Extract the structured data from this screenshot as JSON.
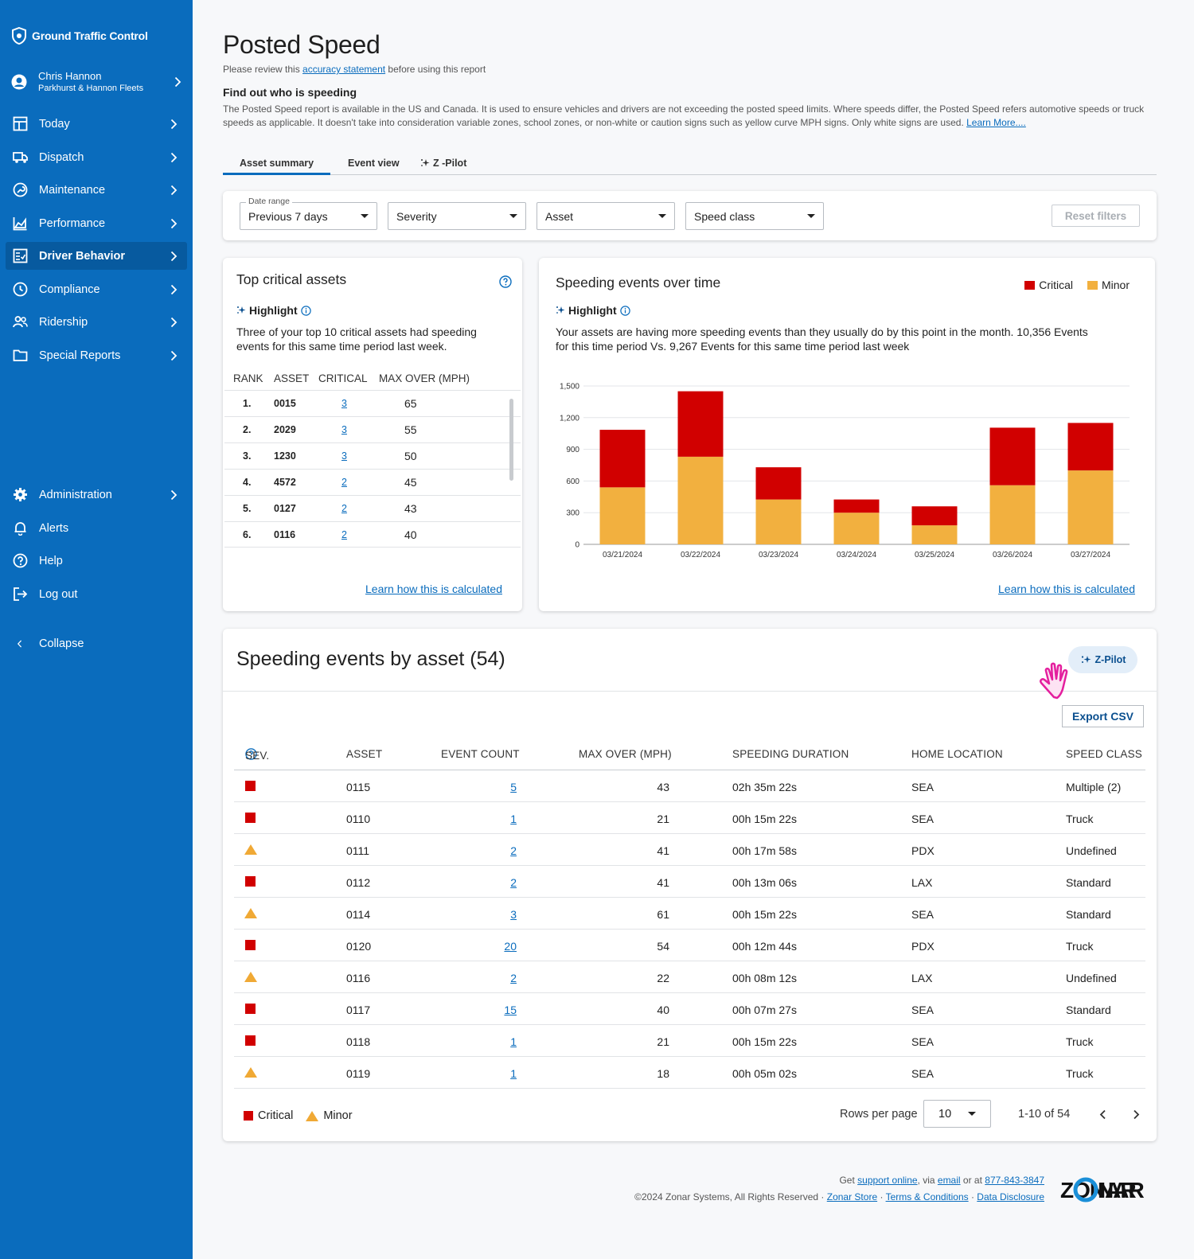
{
  "sidebar": {
    "brand": "Ground Traffic Control",
    "user": {
      "name": "Chris Hannon",
      "org": "Parkhurst & Hannon Fleets"
    },
    "items": [
      {
        "label": "Today",
        "icon": "grid-icon"
      },
      {
        "label": "Dispatch",
        "icon": "truck-icon"
      },
      {
        "label": "Maintenance",
        "icon": "wrench-icon"
      },
      {
        "label": "Performance",
        "icon": "chart-icon"
      },
      {
        "label": "Driver Behavior",
        "icon": "clipboard-check-icon"
      },
      {
        "label": "Compliance",
        "icon": "clock-icon"
      },
      {
        "label": "Ridership",
        "icon": "users-icon"
      },
      {
        "label": "Special Reports",
        "icon": "folder-icon"
      }
    ],
    "bottom_items": [
      {
        "label": "Administration",
        "icon": "gear-icon"
      },
      {
        "label": "Alerts",
        "icon": "bell-icon"
      },
      {
        "label": "Help",
        "icon": "help-icon"
      },
      {
        "label": "Log out",
        "icon": "logout-icon"
      }
    ],
    "collapse": "Collapse"
  },
  "page": {
    "title": "Posted Speed",
    "review_prefix": "Please review this ",
    "review_link": "accuracy statement",
    "review_suffix": " before using this report",
    "find_heading": "Find out who is speeding",
    "find_text": "The Posted Speed report is available in the US and Canada. It is used to ensure vehicles and drivers are not exceeding the posted speed limits. Where speeds differ, the Posted Speed refers automotive speeds or truck speeds as applicable. It doesn't take into consideration variable zones, school zones, or non-white or caution signs such as yellow curve MPH signs. Only white signs are used. ",
    "learn_more": "Learn More...."
  },
  "tabs": [
    "Asset summary",
    "Event view",
    "Z -Pilot"
  ],
  "filters": {
    "date_label": "Date range",
    "date_value": "Previous 7 days",
    "severity": "Severity",
    "asset": "Asset",
    "speed_class": "Speed class",
    "reset": "Reset filters"
  },
  "top_critical": {
    "title": "Top critical assets",
    "highlight": "Highlight",
    "highlight_text": "Three of your top 10 critical assets had speeding events for this same time period last week.",
    "headers": [
      "RANK",
      "ASSET",
      "CRITICAL",
      "MAX OVER (MPH)"
    ],
    "rows": [
      {
        "rank": "1.",
        "asset": "0015",
        "critical": "3",
        "max": "65"
      },
      {
        "rank": "2.",
        "asset": "2029",
        "critical": "3",
        "max": "55"
      },
      {
        "rank": "3.",
        "asset": "1230",
        "critical": "3",
        "max": "50"
      },
      {
        "rank": "4.",
        "asset": "4572",
        "critical": "2",
        "max": "45"
      },
      {
        "rank": "5.",
        "asset": "0127",
        "critical": "2",
        "max": "43"
      },
      {
        "rank": "6.",
        "asset": "0116",
        "critical": "2",
        "max": "40"
      }
    ],
    "learn": "Learn how this is calculated"
  },
  "speeding_over_time": {
    "title": "Speeding events over time",
    "highlight": "Highlight",
    "highlight_text": "Your assets are having more speeding events than they usually do by this point in the month. 10,356 Events for this time period Vs. 9,267 Events for this same time period last week",
    "learn": "Learn how this is calculated"
  },
  "chart_data": {
    "type": "bar",
    "stacked": true,
    "categories": [
      "03/21/2024",
      "03/22/2024",
      "03/23/2024",
      "03/24/2024",
      "03/25/2024",
      "03/26/2024",
      "03/27/2024"
    ],
    "series": [
      {
        "name": "Minor",
        "color": "#f2b03f",
        "values": [
          540,
          830,
          425,
          300,
          180,
          560,
          700
        ]
      },
      {
        "name": "Critical",
        "color": "#d10000",
        "values": [
          545,
          620,
          305,
          125,
          180,
          545,
          450
        ]
      }
    ],
    "yticks": [
      "0",
      "300",
      "600",
      "900",
      "1,200",
      "1,500"
    ],
    "ylim": [
      0,
      1500
    ],
    "legend": "top-right",
    "grid": true
  },
  "by_asset": {
    "title": "Speeding events by asset (54)",
    "zpilot": "Z-Pilot",
    "export": "Export CSV",
    "headers": [
      "SEV.",
      "ASSET",
      "EVENT COUNT",
      "MAX OVER (MPH)",
      "SPEEDING  DURATION",
      "HOME LOCATION",
      "SPEED CLASS"
    ],
    "rows": [
      {
        "sev": "critical",
        "asset": "0115",
        "count": "5",
        "max": "43",
        "duration": "02h 35m 22s",
        "home": "SEA",
        "class": "Multiple (2)"
      },
      {
        "sev": "critical",
        "asset": "0110",
        "count": "1",
        "max": "21",
        "duration": "00h 15m 22s",
        "home": "SEA",
        "class": "Truck"
      },
      {
        "sev": "minor",
        "asset": "0111",
        "count": "2",
        "max": "41",
        "duration": "00h 17m 58s",
        "home": "PDX",
        "class": "Undefined"
      },
      {
        "sev": "critical",
        "asset": "0112",
        "count": "2",
        "max": "41",
        "duration": "00h 13m 06s",
        "home": "LAX",
        "class": "Standard"
      },
      {
        "sev": "minor",
        "asset": "0114",
        "count": "3",
        "max": "61",
        "duration": "00h 15m 22s",
        "home": "SEA",
        "class": "Standard"
      },
      {
        "sev": "critical",
        "asset": "0120",
        "count": "20",
        "max": "54",
        "duration": "00h 12m 44s",
        "home": "PDX",
        "class": "Truck"
      },
      {
        "sev": "minor",
        "asset": "0116",
        "count": "2",
        "max": "22",
        "duration": "00h 08m 12s",
        "home": "LAX",
        "class": "Undefined"
      },
      {
        "sev": "critical",
        "asset": "0117",
        "count": "15",
        "max": "40",
        "duration": "00h 07m 27s",
        "home": "SEA",
        "class": "Standard"
      },
      {
        "sev": "critical",
        "asset": "0118",
        "count": "1",
        "max": "21",
        "duration": "00h 15m 22s",
        "home": "SEA",
        "class": "Truck"
      },
      {
        "sev": "minor",
        "asset": "0119",
        "count": "1",
        "max": "18",
        "duration": "00h 05m 02s",
        "home": "SEA",
        "class": "Truck"
      }
    ],
    "legend_critical": "Critical",
    "legend_minor": "Minor",
    "rows_per_page_label": "Rows per page",
    "rows_per_page": "10",
    "range": "1-10 of 54"
  },
  "footer": {
    "get": "Get ",
    "support": "support online",
    "via": ", via ",
    "email": "email",
    "or_at": " or at ",
    "phone": "877-843-3847",
    "copyright": "©2024 Zonar Systems, All Rights Reserved",
    "sep": " · ",
    "store": "Zonar Store",
    "terms": "Terms & Conditions",
    "disclosure": "Data Disclosure",
    "logo": "ZONAR"
  },
  "colors": {
    "sidebar": "#0a6cbd",
    "critical": "#d10000",
    "minor": "#f2b03f",
    "accent": "#0a6cbd"
  }
}
